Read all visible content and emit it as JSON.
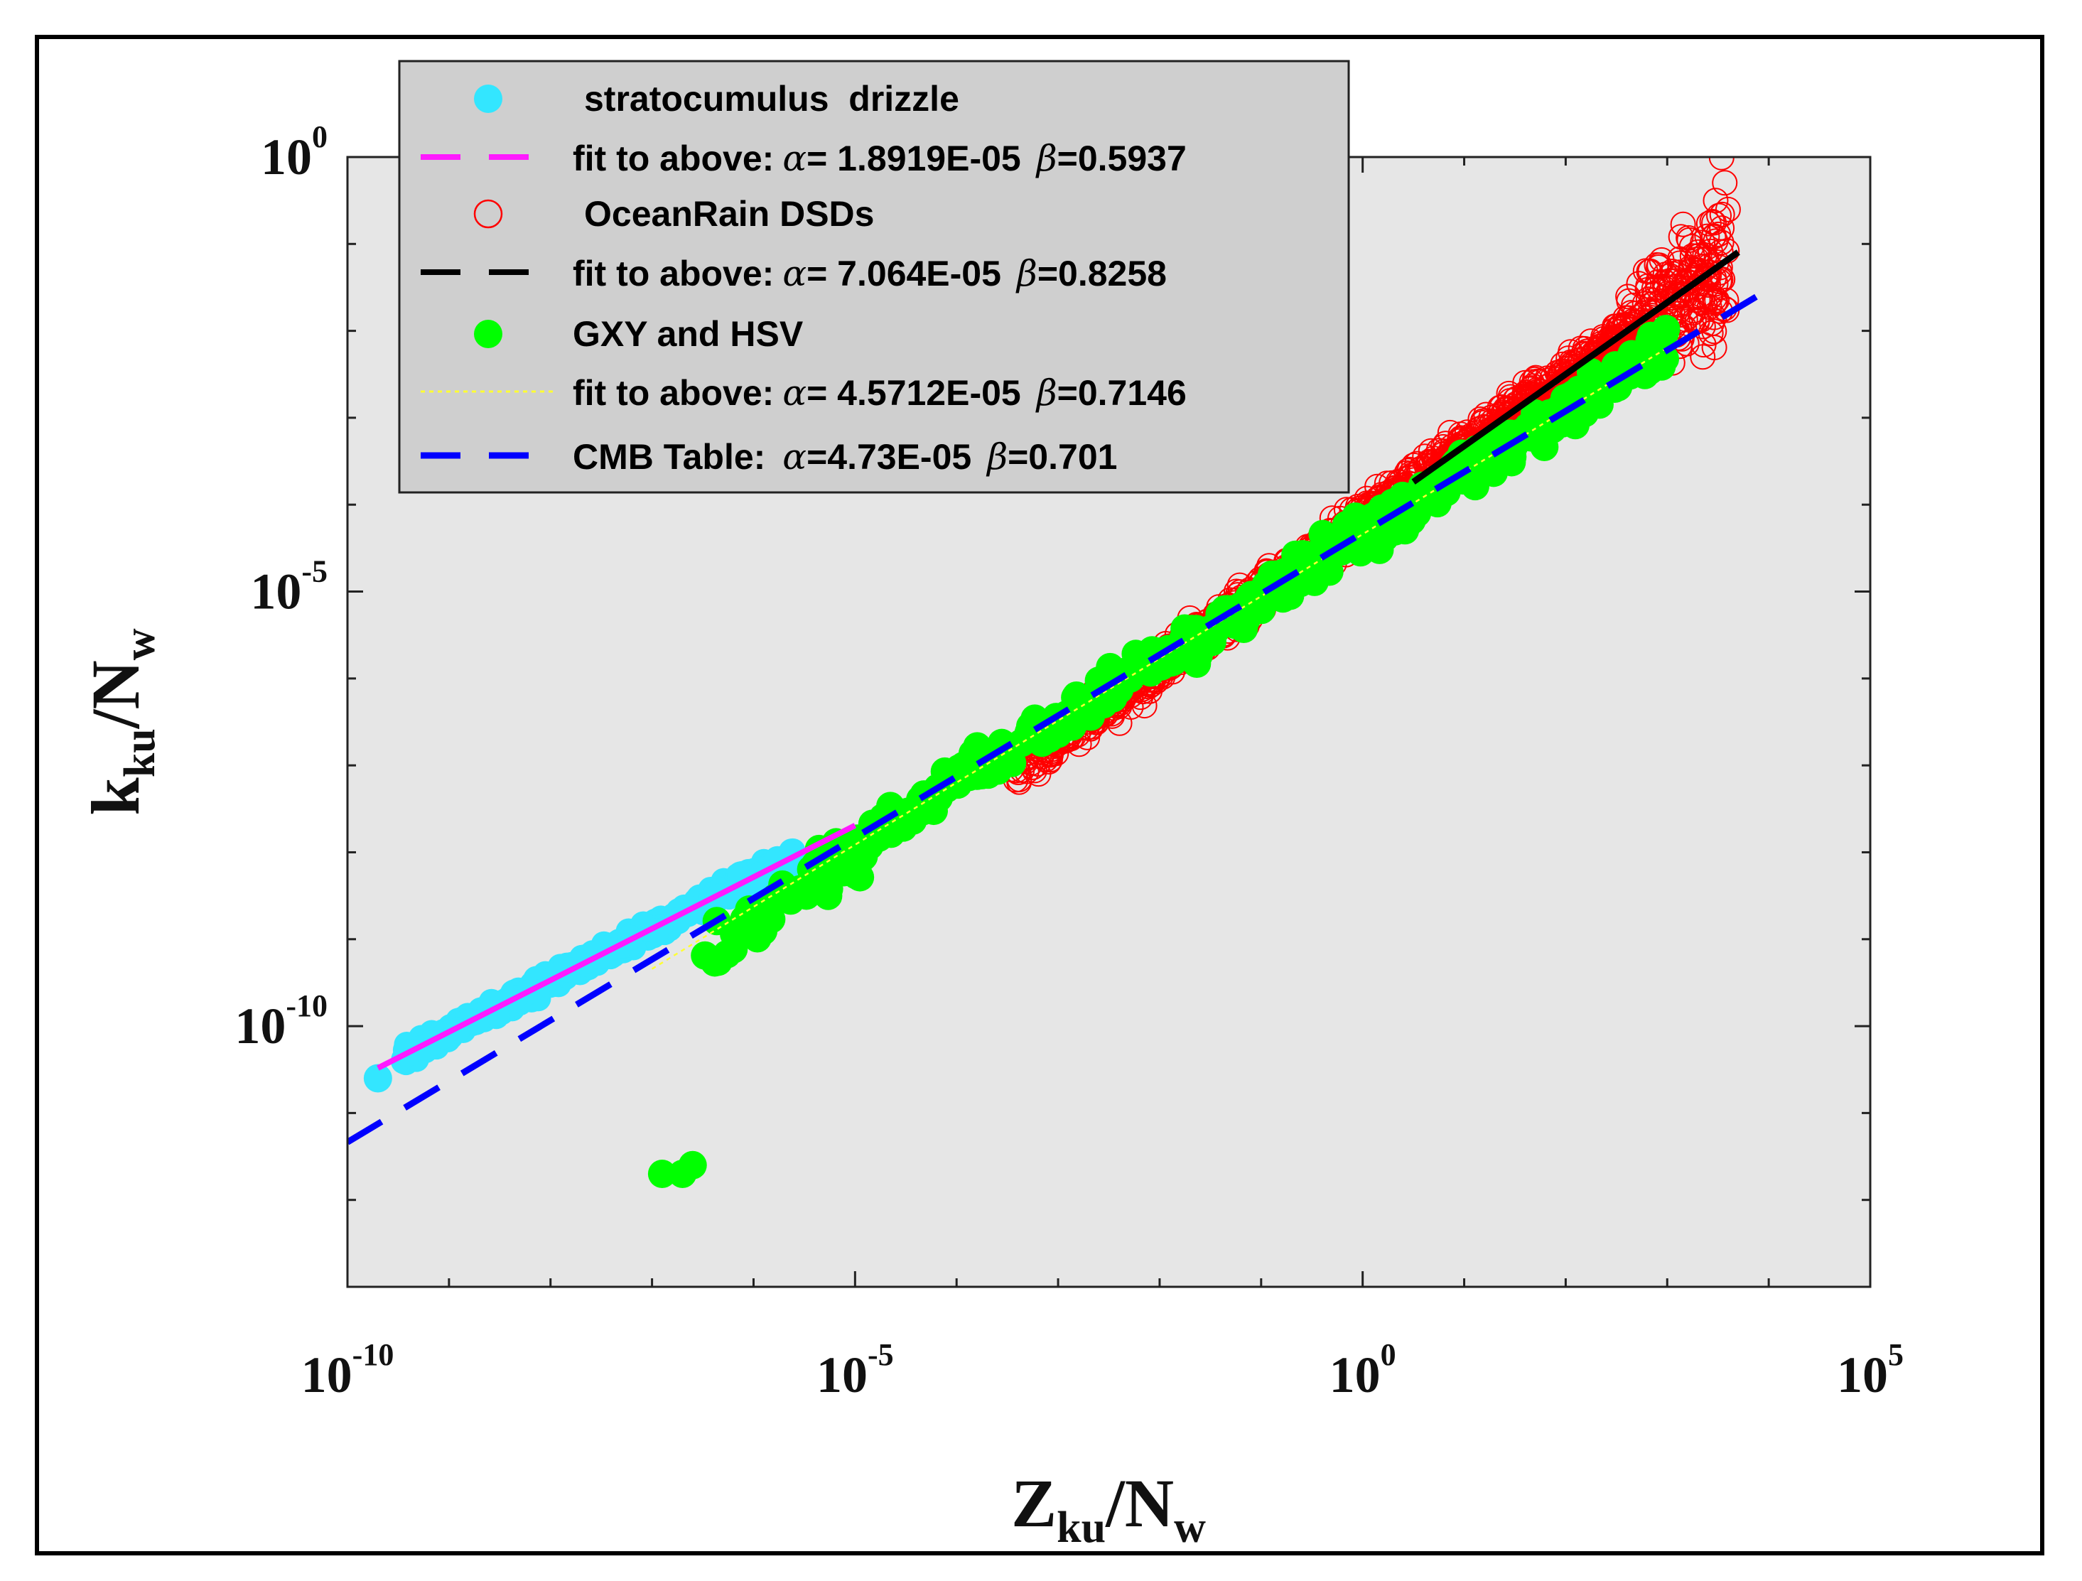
{
  "chart_data": {
    "type": "scatter",
    "xscale": "log",
    "yscale": "log",
    "xlim": [
      1e-10,
      100000.0
    ],
    "ylim": [
      1e-13,
      1.0
    ],
    "xticks": [
      {
        "value": 1e-10,
        "base": "10",
        "exp": "-10"
      },
      {
        "value": 1e-05,
        "base": "10",
        "exp": "-5"
      },
      {
        "value": 1.0,
        "base": "10",
        "exp": "0"
      },
      {
        "value": 100000.0,
        "base": "10",
        "exp": "5"
      }
    ],
    "yticks": [
      {
        "value": 1e-10,
        "base": "10",
        "exp": "-10"
      },
      {
        "value": 1e-05,
        "base": "10",
        "exp": "-5"
      },
      {
        "value": 1.0,
        "base": "10",
        "exp": "0"
      }
    ],
    "xlabel": {
      "main": "Z",
      "sub": "ku",
      "div": "/N",
      "sub2": "w"
    },
    "ylabel": {
      "main": "k",
      "sub": "ku",
      "div": "/N",
      "sub2": "w"
    },
    "grid": false,
    "legend_position": "top-left",
    "background": "#e6e6e6",
    "series": [
      {
        "name": "stratocumulus  drizzle",
        "kind": "points",
        "marker": "filled-circle",
        "color": "#33e6ff",
        "x_range_log10": [
          -9.7,
          -5.6
        ],
        "fit_beta": 0.5937,
        "fit_alpha": 1.8919e-05,
        "outlier": {
          "log10x": -9.7,
          "log10y": -10.6
        }
      },
      {
        "name": "fit to above:",
        "kind": "line",
        "style": "dashed",
        "color": "#ff1aff",
        "alpha_text": "= 1.8919E-05",
        "beta_text": "=0.5937",
        "alpha": 1.8919e-05,
        "beta": 0.5937,
        "x_range_log10": [
          -9.7,
          -5.0
        ]
      },
      {
        "name": "OceanRain DSDs",
        "kind": "points",
        "marker": "open-circle",
        "color": "#ff0000",
        "x_range_log10": [
          -3.5,
          3.6
        ],
        "fit_beta": 0.8258,
        "fit_alpha": 7.064e-05
      },
      {
        "name": "fit to above:",
        "kind": "line",
        "style": "dashed",
        "color": "#000000",
        "alpha_text": "= 7.064E-05",
        "beta_text": "=0.8258",
        "alpha": 7.064e-05,
        "beta": 0.8258,
        "x_range_log10": [
          0.5,
          3.7
        ]
      },
      {
        "name": "GXY and HSV",
        "kind": "points",
        "marker": "filled-circle",
        "color": "#00ff00",
        "x_range_log10": [
          -6.9,
          3.0
        ],
        "fit_beta": 0.7146,
        "fit_alpha": 4.5712e-05
      },
      {
        "name": "fit to above:",
        "kind": "line",
        "style": "dotted",
        "color": "#ffff33",
        "alpha_text": "= 4.5712E-05",
        "beta_text": "=0.7146",
        "alpha": 4.5712e-05,
        "beta": 0.7146,
        "x_range_log10": [
          -7.0,
          3.0
        ]
      },
      {
        "name": "CMB Table:",
        "kind": "line",
        "style": "dashed",
        "color": "#0000ff",
        "alpha_text": "=4.73E-05",
        "beta_text": "=0.701",
        "alpha": 4.73e-05,
        "beta": 0.701,
        "x_range_log10": [
          -10.0,
          4.0
        ]
      }
    ]
  }
}
